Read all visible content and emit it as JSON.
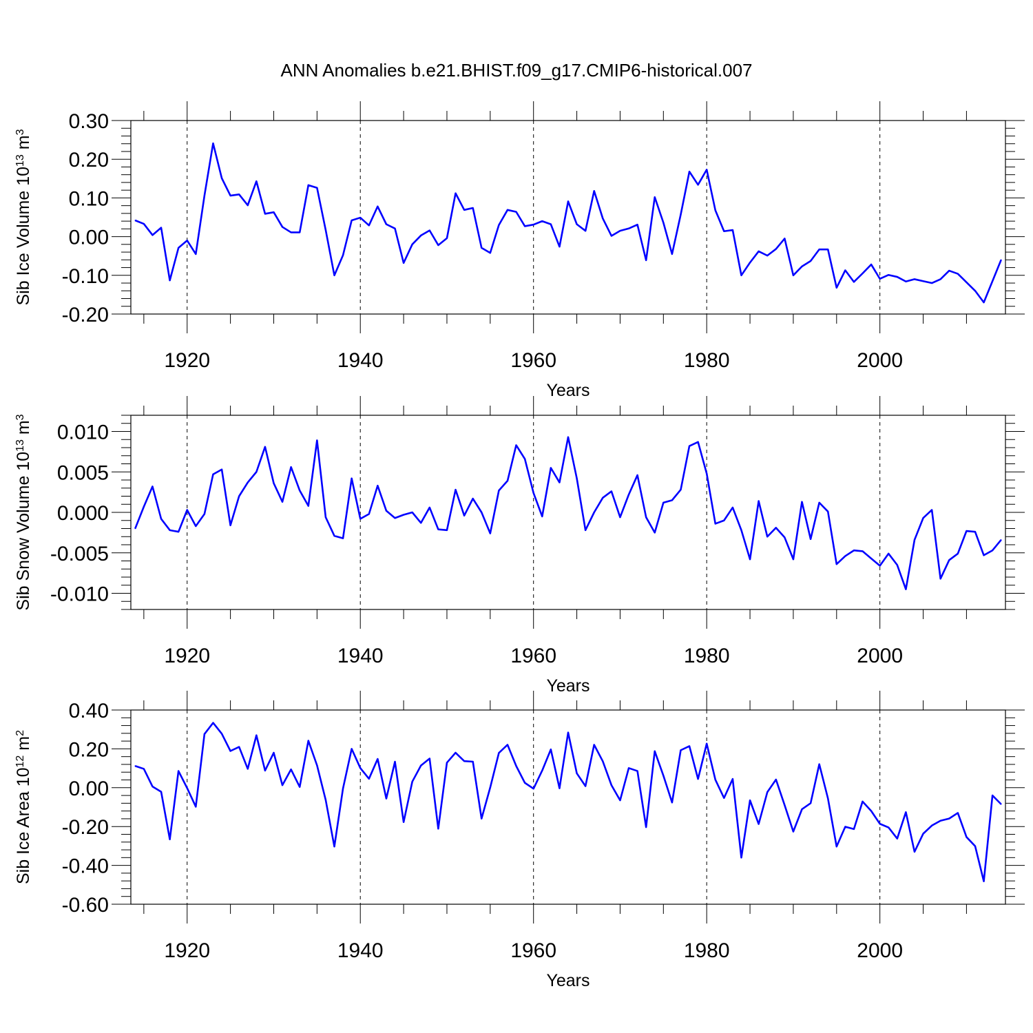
{
  "figure": {
    "title": "ANN Anomalies b.e21.BHIST.f09_g17.CMIP6-historical.007",
    "line_color": "#0000ff",
    "x_axis": {
      "label": "Years",
      "range": [
        1913.5,
        2014.5
      ],
      "major_ticks": [
        1920,
        1940,
        1960,
        1980,
        2000
      ],
      "tick_labels": [
        "1920",
        "1940",
        "1960",
        "1980",
        "2000"
      ]
    }
  },
  "chart_data": [
    {
      "type": "line",
      "title": "",
      "xlabel": "Years",
      "ylabel_main": "Sib Ice Volume 10",
      "ylabel_exp": "13",
      "ylabel_unit": " m",
      "ylabel_unit_exp": "3",
      "ylim": [
        -0.2,
        0.3
      ],
      "yticks": [
        -0.2,
        -0.1,
        0.0,
        0.1,
        0.2,
        0.3
      ],
      "ytick_labels": [
        "-0.20",
        "-0.10",
        "0.00",
        "0.10",
        "0.20",
        "0.30"
      ],
      "grid_x": [
        1920,
        1940,
        1960,
        1980,
        2000
      ],
      "x_start": 1914,
      "values": [
        0.042,
        0.033,
        0.004,
        0.023,
        -0.113,
        -0.029,
        -0.01,
        -0.045,
        0.106,
        0.241,
        0.151,
        0.106,
        0.109,
        0.081,
        0.143,
        0.059,
        0.063,
        0.025,
        0.011,
        0.011,
        0.133,
        0.126,
        0.017,
        -0.1,
        -0.048,
        0.042,
        0.049,
        0.029,
        0.078,
        0.032,
        0.021,
        -0.068,
        -0.02,
        0.003,
        0.016,
        -0.022,
        -0.004,
        0.112,
        0.069,
        0.074,
        -0.029,
        -0.042,
        0.03,
        0.069,
        0.064,
        0.027,
        0.031,
        0.04,
        0.032,
        -0.026,
        0.091,
        0.032,
        0.015,
        0.118,
        0.047,
        0.002,
        0.015,
        0.021,
        0.031,
        -0.061,
        0.102,
        0.036,
        -0.045,
        0.057,
        0.168,
        0.134,
        0.173,
        0.068,
        0.014,
        0.017,
        -0.1,
        -0.067,
        -0.038,
        -0.049,
        -0.032,
        -0.005,
        -0.1,
        -0.077,
        -0.063,
        -0.033,
        -0.033,
        -0.132,
        -0.087,
        -0.117,
        -0.095,
        -0.072,
        -0.109,
        -0.099,
        -0.104,
        -0.116,
        -0.11,
        -0.115,
        -0.12,
        -0.11,
        -0.088,
        -0.096,
        -0.118,
        -0.14,
        -0.17,
        -0.115,
        -0.06
      ]
    },
    {
      "type": "line",
      "title": "",
      "xlabel": "Years",
      "ylabel_main": "Sib Snow Volume 10",
      "ylabel_exp": "13",
      "ylabel_unit": " m",
      "ylabel_unit_exp": "3",
      "ylim": [
        -0.012,
        0.012
      ],
      "yticks": [
        -0.01,
        -0.005,
        0.0,
        0.005,
        0.01
      ],
      "ytick_labels": [
        "-0.010",
        "-0.005",
        "0.000",
        "0.005",
        "0.010"
      ],
      "grid_x": [
        1920,
        1940,
        1960,
        1980,
        2000
      ],
      "x_start": 1914,
      "values": [
        -0.002,
        0.0007,
        0.0032,
        -0.0008,
        -0.0022,
        -0.0024,
        0.0003,
        -0.0017,
        -0.0002,
        0.0047,
        0.0053,
        -0.0016,
        0.002,
        0.0037,
        0.005,
        0.0081,
        0.0036,
        0.0013,
        0.0056,
        0.0027,
        0.0008,
        0.0089,
        -0.0006,
        -0.0029,
        -0.0032,
        0.0042,
        -0.0008,
        -0.0002,
        0.0033,
        0.0002,
        -0.0007,
        -0.0003,
        0.0,
        -0.0013,
        0.0006,
        -0.0021,
        -0.0022,
        0.0028,
        -0.0004,
        0.0017,
        0.0,
        -0.0026,
        0.0027,
        0.0039,
        0.0083,
        0.0066,
        0.0024,
        -0.0005,
        0.0055,
        0.0037,
        0.0093,
        0.0042,
        -0.0022,
        0.0,
        0.0018,
        0.0026,
        -0.0006,
        0.0022,
        0.0046,
        -0.0006,
        -0.0025,
        0.0012,
        0.0015,
        0.0028,
        0.0082,
        0.0087,
        0.0048,
        -0.0014,
        -0.001,
        0.0006,
        -0.0022,
        -0.0058,
        0.0014,
        -0.003,
        -0.0019,
        -0.0031,
        -0.0058,
        0.0013,
        -0.0033,
        0.0012,
        0.0001,
        -0.0064,
        -0.0054,
        -0.0047,
        -0.0048,
        -0.0057,
        -0.0066,
        -0.0051,
        -0.0065,
        -0.0095,
        -0.0034,
        -0.0007,
        0.0003,
        -0.0082,
        -0.0059,
        -0.0051,
        -0.0023,
        -0.0024,
        -0.0053,
        -0.0047,
        -0.0034
      ]
    },
    {
      "type": "line",
      "title": "",
      "xlabel": "Years",
      "ylabel_main": "Sib Ice Area 10",
      "ylabel_exp": "12",
      "ylabel_unit": " m",
      "ylabel_unit_exp": "2",
      "ylim": [
        -0.6,
        0.4
      ],
      "yticks": [
        -0.6,
        -0.4,
        -0.2,
        0.0,
        0.2,
        0.4
      ],
      "ytick_labels": [
        "-0.60",
        "-0.40",
        "-0.20",
        "0.00",
        "0.20",
        "0.40"
      ],
      "grid_x": [
        1920,
        1940,
        1960,
        1980,
        2000
      ],
      "x_start": 1914,
      "values": [
        0.112,
        0.097,
        0.006,
        -0.021,
        -0.266,
        0.086,
        -0.002,
        -0.098,
        0.276,
        0.334,
        0.278,
        0.189,
        0.21,
        0.097,
        0.27,
        0.088,
        0.18,
        0.013,
        0.094,
        0.004,
        0.242,
        0.115,
        -0.063,
        -0.303,
        -0.004,
        0.2,
        0.101,
        0.046,
        0.148,
        -0.056,
        0.134,
        -0.177,
        0.031,
        0.114,
        0.15,
        -0.211,
        0.129,
        0.18,
        0.137,
        0.134,
        -0.159,
        0.001,
        0.179,
        0.221,
        0.112,
        0.025,
        -0.005,
        0.088,
        0.197,
        -0.003,
        0.284,
        0.074,
        0.008,
        0.221,
        0.136,
        0.013,
        -0.065,
        0.101,
        0.086,
        -0.203,
        0.188,
        0.062,
        -0.076,
        0.193,
        0.214,
        0.045,
        0.227,
        0.041,
        -0.053,
        0.045,
        -0.36,
        -0.065,
        -0.187,
        -0.023,
        0.042,
        -0.09,
        -0.226,
        -0.111,
        -0.08,
        0.121,
        -0.055,
        -0.303,
        -0.201,
        -0.213,
        -0.071,
        -0.12,
        -0.186,
        -0.205,
        -0.262,
        -0.126,
        -0.33,
        -0.237,
        -0.195,
        -0.17,
        -0.159,
        -0.13,
        -0.254,
        -0.301,
        -0.482,
        -0.04,
        -0.085
      ]
    }
  ]
}
